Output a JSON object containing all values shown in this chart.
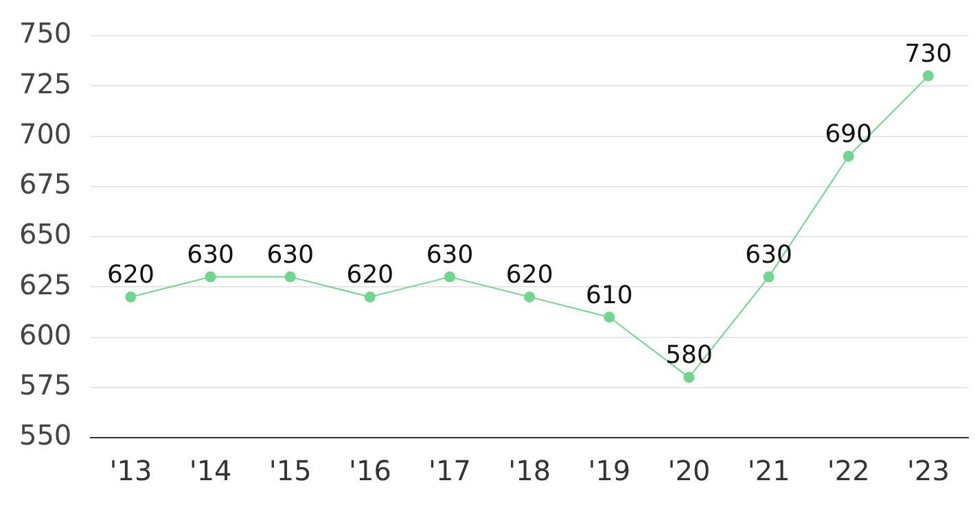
{
  "chart_data": {
    "type": "line",
    "categories": [
      "'13",
      "'14",
      "'15",
      "'16",
      "'17",
      "'18",
      "'19",
      "'20",
      "'21",
      "'22",
      "'23"
    ],
    "series": [
      {
        "color": "#6fd68c",
        "values": [
          620,
          630,
          630,
          620,
          630,
          620,
          610,
          580,
          630,
          690,
          730
        ]
      }
    ],
    "ylim": [
      550,
      750
    ],
    "yticks": [
      550,
      575,
      600,
      625,
      650,
      675,
      700,
      725,
      750
    ],
    "grid": "y",
    "marker": "circle",
    "line_style": "solid",
    "data_labels": true,
    "legend": false
  }
}
